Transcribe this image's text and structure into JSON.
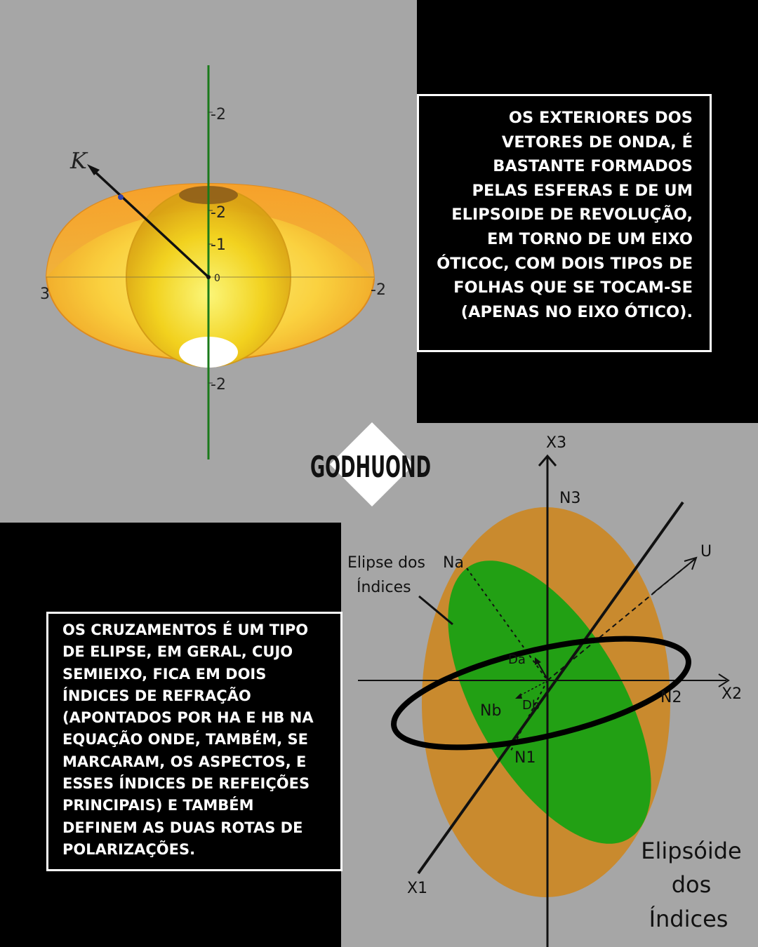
{
  "top_paragraph": "OS EXTERIORES DOS VETORES DE ONDA, É BASTANTE FORMADOS PELAS ESFERAS E DE UM ELIPSOIDE DE REVOLUÇÃO, EM TORNO DE UM  EIXO ÓTICOC, COM DOIS TIPOS DE FOLHAS QUE SE TOCAM-SE (APENAS NO EIXO ÓTICO).",
  "bottom_paragraph": "OS CRUZAMENTOS É UM TIPO DE ELIPSE, EM GERAL, CUJO SEMIEIXO, FICA EM DOIS ÍNDICES DE REFRAÇÃO (APONTADOS POR HA E HB NA EQUAÇÃO ONDE, TAMBÉM, SE MARCARAM, OS ASPECTOS, E ESSES ÍNDICES DE REFEIÇÕES PRINCIPAIS) E TAMBÉM DEFINEM AS DUAS ROTAS DE POLARIZAÇÕES.",
  "logo": {
    "text": "GODHUOND"
  },
  "surface_plot": {
    "vector_label": "K",
    "tick_labels": {
      "top": "-2",
      "upper_mid": "-2",
      "minus_one": "-1",
      "origin": "0",
      "left": "3",
      "right": "-2",
      "bottom": "-2"
    },
    "colors": {
      "outer_sheet": "#f5a623",
      "inner_sphere": "#f2d21c",
      "axis": "#1a7a1a"
    }
  },
  "index_ellipsoid": {
    "axis_labels": {
      "x1": "X1",
      "x2": "X2",
      "x3": "X3",
      "u": "U"
    },
    "point_labels": {
      "n1": "N1",
      "n2": "N2",
      "n3": "N3",
      "na": "Na",
      "nb": "Nb",
      "da": "Da",
      "db": "Db"
    },
    "ellipse_label_line1": "Elipse dos",
    "ellipse_label_line2": "Índices",
    "ellipsoid_label_line1": "Elipsóide",
    "ellipsoid_label_line2": "dos",
    "ellipsoid_label_line3": "Índices",
    "colors": {
      "ellipsoid": "#c98a2e",
      "ellipse": "#22a014",
      "ring": "#000000"
    }
  }
}
